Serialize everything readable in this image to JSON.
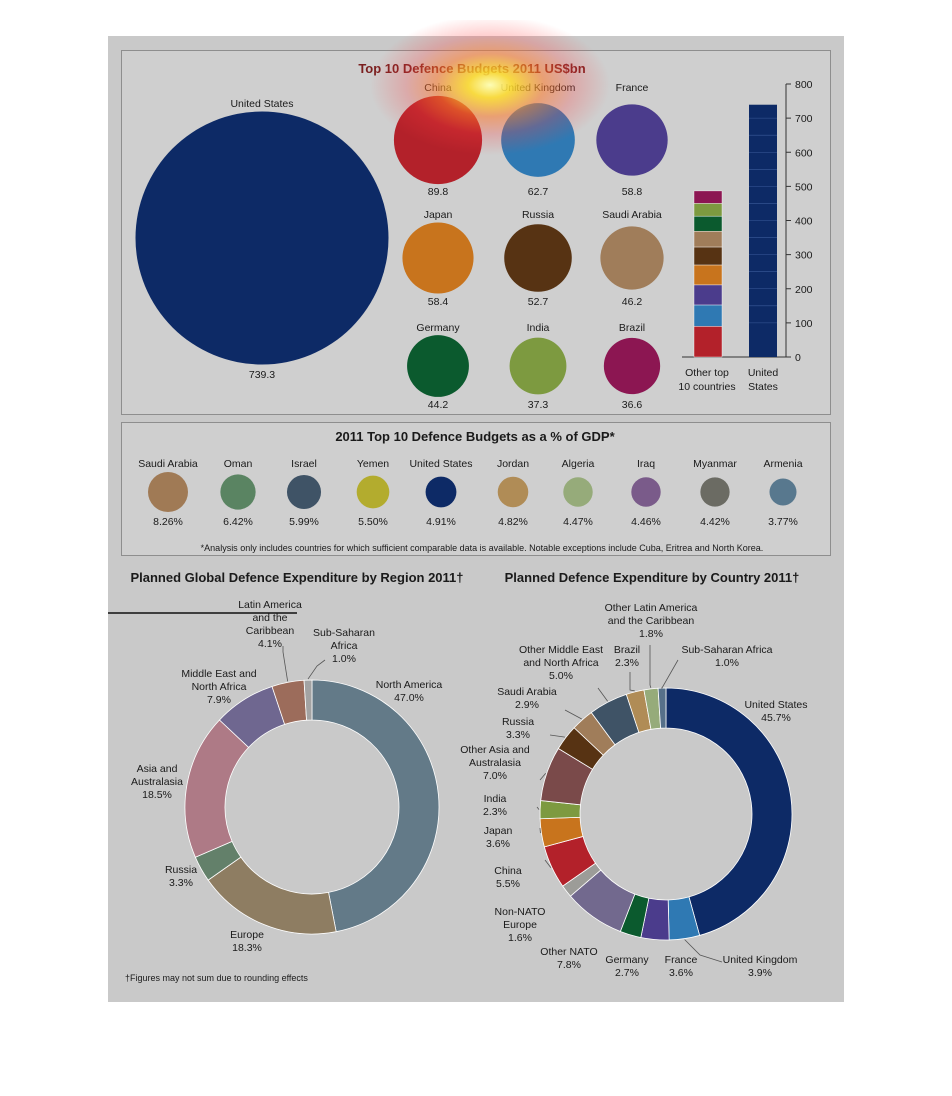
{
  "bubbles": {
    "title": "Top 10 Defence Budgets 2011 US$bn",
    "items": [
      {
        "name": "United States",
        "value": "739.3",
        "color": "#0d2a66"
      },
      {
        "name": "China",
        "value": "89.8",
        "color": "#b3212a"
      },
      {
        "name": "United Kingdom",
        "value": "62.7",
        "color": "#2f79b3"
      },
      {
        "name": "France",
        "value": "58.8",
        "color": "#4b3c8c"
      },
      {
        "name": "Japan",
        "value": "58.4",
        "color": "#c8741d"
      },
      {
        "name": "Russia",
        "value": "52.7",
        "color": "#573313"
      },
      {
        "name": "Saudi Arabia",
        "value": "46.2",
        "color": "#a07d5a"
      },
      {
        "name": "Germany",
        "value": "44.2",
        "color": "#0b5a2e"
      },
      {
        "name": "India",
        "value": "37.3",
        "color": "#7d9a40"
      },
      {
        "name": "Brazil",
        "value": "36.6",
        "color": "#8c1652"
      }
    ]
  },
  "stack": {
    "ticks": [
      "0",
      "100",
      "200",
      "300",
      "400",
      "500",
      "600",
      "700",
      "800"
    ],
    "ymax": 800,
    "labels": [
      [
        "Other top",
        "10 countries"
      ],
      [
        "United",
        "States"
      ]
    ],
    "us_value": 739.3
  },
  "gdp": {
    "title": "2011 Top 10 Defence Budgets as a % of GDP*",
    "note": "*Analysis only includes countries for which sufficient comparable data is available. Notable exceptions include Cuba, Eritrea and North Korea.",
    "items": [
      {
        "name": "Saudi Arabia",
        "value": "8.26%",
        "pct": 8.26,
        "color": "#a07a55"
      },
      {
        "name": "Oman",
        "value": "6.42%",
        "pct": 6.42,
        "color": "#5a8462"
      },
      {
        "name": "Israel",
        "value": "5.99%",
        "pct": 5.99,
        "color": "#3f5366"
      },
      {
        "name": "Yemen",
        "value": "5.50%",
        "pct": 5.5,
        "color": "#b3ac2e"
      },
      {
        "name": "United States",
        "value": "4.91%",
        "pct": 4.91,
        "color": "#0d2a66"
      },
      {
        "name": "Jordan",
        "value": "4.82%",
        "pct": 4.82,
        "color": "#b08c56"
      },
      {
        "name": "Algeria",
        "value": "4.47%",
        "pct": 4.47,
        "color": "#96ab7a"
      },
      {
        "name": "Iraq",
        "value": "4.46%",
        "pct": 4.46,
        "color": "#7a5b8a"
      },
      {
        "name": "Myanmar",
        "value": "4.42%",
        "pct": 4.42,
        "color": "#6b6b63"
      },
      {
        "name": "Armenia",
        "value": "3.77%",
        "pct": 3.77,
        "color": "#58788e"
      }
    ]
  },
  "chart_data": [
    {
      "type": "pie",
      "title": "Planned Global Defence Expenditure by Region 2011†",
      "note": "†Figures may not sum due to rounding effects",
      "slices": [
        {
          "name": "North America",
          "label": [
            "North America",
            "47.0%"
          ],
          "value": 47.0,
          "color": "#637a88"
        },
        {
          "name": "Europe",
          "label": [
            "Europe",
            "18.3%"
          ],
          "value": 18.3,
          "color": "#8e7d62"
        },
        {
          "name": "Russia",
          "label": [
            "Russia",
            "3.3%"
          ],
          "value": 3.3,
          "color": "#63806a"
        },
        {
          "name": "Asia and Australasia",
          "label": [
            "Asia and",
            "Australasia",
            "18.5%"
          ],
          "value": 18.5,
          "color": "#ae7a86"
        },
        {
          "name": "Middle East and North Africa",
          "label": [
            "Middle East and",
            "North Africa",
            "7.9%"
          ],
          "value": 7.9,
          "color": "#6f6790"
        },
        {
          "name": "Latin America and the Caribbean",
          "label": [
            "Latin America",
            "and the",
            "Caribbean",
            "4.1%"
          ],
          "value": 4.1,
          "color": "#9c6c5b"
        },
        {
          "name": "Sub-Saharan Africa",
          "label": [
            "Sub-Saharan",
            "Africa",
            "1.0%"
          ],
          "value": 1.0,
          "color": "#a3a3a3"
        }
      ]
    },
    {
      "type": "pie",
      "title": "Planned Defence Expenditure by Country 2011†",
      "slices": [
        {
          "name": "United States",
          "label": [
            "United States",
            "45.7%"
          ],
          "value": 45.7,
          "color": "#0d2a66"
        },
        {
          "name": "United Kingdom",
          "label": [
            "United Kingdom",
            "3.9%"
          ],
          "value": 3.9,
          "color": "#2f79b3"
        },
        {
          "name": "France",
          "label": [
            "France",
            "3.6%"
          ],
          "value": 3.6,
          "color": "#4b3c8c"
        },
        {
          "name": "Germany",
          "label": [
            "Germany",
            "2.7%"
          ],
          "value": 2.7,
          "color": "#0b5a2e"
        },
        {
          "name": "Other NATO",
          "label": [
            "Other NATO",
            "7.8%"
          ],
          "value": 7.8,
          "color": "#72698e"
        },
        {
          "name": "Non-NATO Europe",
          "label": [
            "Non-NATO",
            "Europe",
            "1.6%"
          ],
          "value": 1.6,
          "color": "#9c9c98"
        },
        {
          "name": "China",
          "label": [
            "China",
            "5.5%"
          ],
          "value": 5.5,
          "color": "#b3212a"
        },
        {
          "name": "Japan",
          "label": [
            "Japan",
            "3.6%"
          ],
          "value": 3.6,
          "color": "#c8741d"
        },
        {
          "name": "India",
          "label": [
            "India",
            "2.3%"
          ],
          "value": 2.3,
          "color": "#7d9a40"
        },
        {
          "name": "Other Asia and Australasia",
          "label": [
            "Other Asia and",
            "Australasia",
            "7.0%"
          ],
          "value": 7.0,
          "color": "#7a4a4a"
        },
        {
          "name": "Russia",
          "label": [
            "Russia",
            "3.3%"
          ],
          "value": 3.3,
          "color": "#573313"
        },
        {
          "name": "Saudi Arabia",
          "label": [
            "Saudi Arabia",
            "2.9%"
          ],
          "value": 2.9,
          "color": "#a07d5a"
        },
        {
          "name": "Other Middle East and North Africa",
          "label": [
            "Other Middle East",
            "and North Africa",
            "5.0%"
          ],
          "value": 5.0,
          "color": "#3f5366"
        },
        {
          "name": "Brazil",
          "label": [
            "Brazil",
            "2.3%"
          ],
          "value": 2.3,
          "color": "#b08c56"
        },
        {
          "name": "Other Latin America and the Caribbean",
          "label": [
            "Other Latin America",
            "and the Caribbean",
            "1.8%"
          ],
          "value": 1.8,
          "color": "#96ab7a"
        },
        {
          "name": "Sub-Saharan Africa",
          "label": [
            "Sub-Saharan Africa",
            "1.0%"
          ],
          "value": 1.0,
          "color": "#56708a"
        }
      ]
    }
  ]
}
